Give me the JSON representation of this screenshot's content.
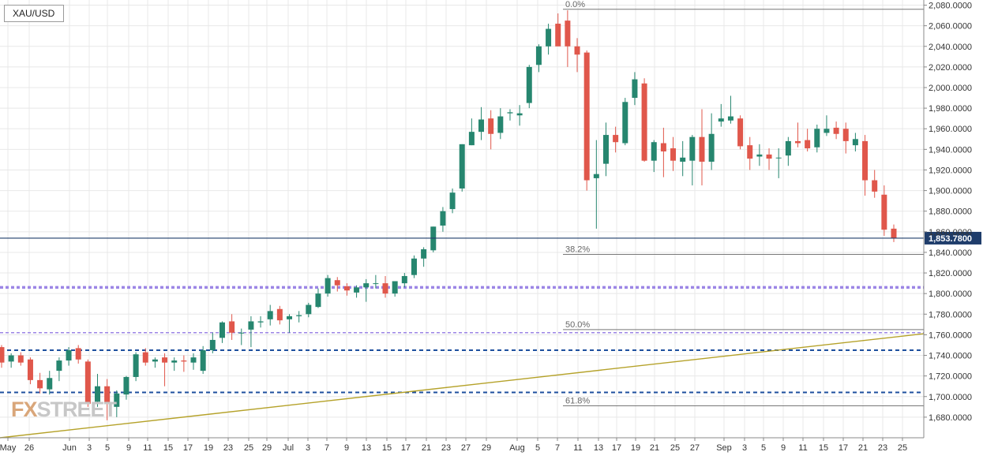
{
  "symbol": "XAU/USD",
  "logo": {
    "part1": "FX",
    "part2": "STREET"
  },
  "current_price": {
    "label": "1,853.7800"
  },
  "colors": {
    "bull": "#26866f",
    "bear": "#e0574b",
    "trendline": "#b5a22a",
    "support_blue": "#1d4f9e",
    "purple_zone": "#9c86e6",
    "price_tag": "#1f3d6b",
    "grid": "#e8e8e8"
  },
  "chart_data": {
    "type": "candlestick",
    "title": "",
    "xlabel": "",
    "ylabel": "",
    "ylim": [
      1660,
      2085
    ],
    "grid": true,
    "y_tick_labels": [
      "1,680.0000",
      "1,700.0000",
      "1,720.0000",
      "1,740.0000",
      "1,760.0000",
      "1,780.0000",
      "1,800.0000",
      "1,820.0000",
      "1,840.0000",
      "1,860.0000",
      "1,880.0000",
      "1,900.0000",
      "1,920.0000",
      "1,940.0000",
      "1,960.0000",
      "1,980.0000",
      "2,000.0000",
      "2,020.0000",
      "2,040.0000",
      "2,060.0000",
      "2,080.0000"
    ],
    "x_tick_labels": [
      "May",
      "26",
      "Jun",
      "3",
      "5",
      "9",
      "11",
      "15",
      "17",
      "19",
      "23",
      "25",
      "29",
      "Jul",
      "3",
      "7",
      "9",
      "13",
      "15",
      "17",
      "21",
      "23",
      "27",
      "29",
      "Aug",
      "5",
      "7",
      "11",
      "13",
      "17",
      "19",
      "21",
      "25",
      "27",
      "Sep",
      "3",
      "5",
      "9",
      "11",
      "15",
      "17",
      "21",
      "23",
      "25"
    ],
    "candles": [
      {
        "o": 1748,
        "h": 1750,
        "l": 1728,
        "c": 1733
      },
      {
        "o": 1734,
        "h": 1742,
        "l": 1728,
        "c": 1740
      },
      {
        "o": 1740,
        "h": 1743,
        "l": 1730,
        "c": 1733
      },
      {
        "o": 1736,
        "h": 1738,
        "l": 1712,
        "c": 1716
      },
      {
        "o": 1716,
        "h": 1723,
        "l": 1703,
        "c": 1708
      },
      {
        "o": 1707,
        "h": 1725,
        "l": 1702,
        "c": 1718
      },
      {
        "o": 1725,
        "h": 1738,
        "l": 1715,
        "c": 1735
      },
      {
        "o": 1735,
        "h": 1748,
        "l": 1730,
        "c": 1745
      },
      {
        "o": 1747,
        "h": 1750,
        "l": 1732,
        "c": 1736
      },
      {
        "o": 1734,
        "h": 1736,
        "l": 1690,
        "c": 1693
      },
      {
        "o": 1695,
        "h": 1722,
        "l": 1690,
        "c": 1710
      },
      {
        "o": 1710,
        "h": 1717,
        "l": 1677,
        "c": 1693
      },
      {
        "o": 1690,
        "h": 1706,
        "l": 1680,
        "c": 1703
      },
      {
        "o": 1702,
        "h": 1720,
        "l": 1697,
        "c": 1719
      },
      {
        "o": 1719,
        "h": 1743,
        "l": 1715,
        "c": 1741
      },
      {
        "o": 1743,
        "h": 1747,
        "l": 1730,
        "c": 1733
      },
      {
        "o": 1734,
        "h": 1738,
        "l": 1728,
        "c": 1736
      },
      {
        "o": 1738,
        "h": 1742,
        "l": 1710,
        "c": 1733
      },
      {
        "o": 1733,
        "h": 1738,
        "l": 1725,
        "c": 1735
      },
      {
        "o": 1735,
        "h": 1740,
        "l": 1724,
        "c": 1734
      },
      {
        "o": 1733,
        "h": 1742,
        "l": 1726,
        "c": 1738
      },
      {
        "o": 1725,
        "h": 1749,
        "l": 1722,
        "c": 1745
      },
      {
        "o": 1745,
        "h": 1762,
        "l": 1742,
        "c": 1755
      },
      {
        "o": 1757,
        "h": 1773,
        "l": 1752,
        "c": 1772
      },
      {
        "o": 1773,
        "h": 1780,
        "l": 1755,
        "c": 1762
      },
      {
        "o": 1762,
        "h": 1766,
        "l": 1750,
        "c": 1762
      },
      {
        "o": 1765,
        "h": 1778,
        "l": 1748,
        "c": 1773
      },
      {
        "o": 1772,
        "h": 1778,
        "l": 1767,
        "c": 1773
      },
      {
        "o": 1775,
        "h": 1789,
        "l": 1769,
        "c": 1783
      },
      {
        "o": 1785,
        "h": 1788,
        "l": 1770,
        "c": 1774
      },
      {
        "o": 1775,
        "h": 1780,
        "l": 1762,
        "c": 1778
      },
      {
        "o": 1778,
        "h": 1783,
        "l": 1772,
        "c": 1779
      },
      {
        "o": 1780,
        "h": 1791,
        "l": 1777,
        "c": 1789
      },
      {
        "o": 1787,
        "h": 1805,
        "l": 1786,
        "c": 1800
      },
      {
        "o": 1800,
        "h": 1818,
        "l": 1797,
        "c": 1815
      },
      {
        "o": 1813,
        "h": 1816,
        "l": 1802,
        "c": 1808
      },
      {
        "o": 1807,
        "h": 1810,
        "l": 1798,
        "c": 1803
      },
      {
        "o": 1801,
        "h": 1808,
        "l": 1796,
        "c": 1806
      },
      {
        "o": 1806,
        "h": 1814,
        "l": 1792,
        "c": 1810
      },
      {
        "o": 1810,
        "h": 1818,
        "l": 1805,
        "c": 1810
      },
      {
        "o": 1810,
        "h": 1817,
        "l": 1796,
        "c": 1800
      },
      {
        "o": 1800,
        "h": 1812,
        "l": 1797,
        "c": 1812
      },
      {
        "o": 1810,
        "h": 1820,
        "l": 1806,
        "c": 1817
      },
      {
        "o": 1818,
        "h": 1837,
        "l": 1815,
        "c": 1834
      },
      {
        "o": 1834,
        "h": 1845,
        "l": 1826,
        "c": 1843
      },
      {
        "o": 1842,
        "h": 1865,
        "l": 1840,
        "c": 1865
      },
      {
        "o": 1866,
        "h": 1884,
        "l": 1860,
        "c": 1880
      },
      {
        "o": 1882,
        "h": 1902,
        "l": 1878,
        "c": 1898
      },
      {
        "o": 1902,
        "h": 1945,
        "l": 1899,
        "c": 1945
      },
      {
        "o": 1944,
        "h": 1970,
        "l": 1944,
        "c": 1957
      },
      {
        "o": 1957,
        "h": 1981,
        "l": 1949,
        "c": 1969
      },
      {
        "o": 1970,
        "h": 1978,
        "l": 1940,
        "c": 1955
      },
      {
        "o": 1956,
        "h": 1980,
        "l": 1950,
        "c": 1972
      },
      {
        "o": 1975,
        "h": 1979,
        "l": 1968,
        "c": 1976
      },
      {
        "o": 1973,
        "h": 1983,
        "l": 1963,
        "c": 1975
      },
      {
        "o": 1985,
        "h": 2022,
        "l": 1980,
        "c": 2020
      },
      {
        "o": 2022,
        "h": 2042,
        "l": 2015,
        "c": 2040
      },
      {
        "o": 2040,
        "h": 2062,
        "l": 2032,
        "c": 2057
      },
      {
        "o": 2062,
        "h": 2072,
        "l": 2043,
        "c": 2040
      },
      {
        "o": 2065,
        "h": 2075,
        "l": 2020,
        "c": 2040
      },
      {
        "o": 2040,
        "h": 2048,
        "l": 2015,
        "c": 2032
      },
      {
        "o": 2034,
        "h": 2036,
        "l": 1900,
        "c": 1910
      },
      {
        "o": 1912,
        "h": 1949,
        "l": 1863,
        "c": 1916
      },
      {
        "o": 1926,
        "h": 1966,
        "l": 1914,
        "c": 1954
      },
      {
        "o": 1954,
        "h": 1962,
        "l": 1937,
        "c": 1947
      },
      {
        "o": 1946,
        "h": 1990,
        "l": 1944,
        "c": 1986
      },
      {
        "o": 1990,
        "h": 2015,
        "l": 1983,
        "c": 2008
      },
      {
        "o": 2004,
        "h": 2009,
        "l": 1928,
        "c": 1929
      },
      {
        "o": 1929,
        "h": 1949,
        "l": 1918,
        "c": 1947
      },
      {
        "o": 1946,
        "h": 1961,
        "l": 1913,
        "c": 1938
      },
      {
        "o": 1941,
        "h": 1952,
        "l": 1919,
        "c": 1929
      },
      {
        "o": 1928,
        "h": 1948,
        "l": 1914,
        "c": 1932
      },
      {
        "o": 1929,
        "h": 1954,
        "l": 1905,
        "c": 1952
      },
      {
        "o": 1952,
        "h": 1979,
        "l": 1905,
        "c": 1928
      },
      {
        "o": 1928,
        "h": 1975,
        "l": 1920,
        "c": 1955
      },
      {
        "o": 1967,
        "h": 1984,
        "l": 1962,
        "c": 1970
      },
      {
        "o": 1968,
        "h": 1992,
        "l": 1965,
        "c": 1972
      },
      {
        "o": 1970,
        "h": 1973,
        "l": 1940,
        "c": 1943
      },
      {
        "o": 1944,
        "h": 1952,
        "l": 1920,
        "c": 1931
      },
      {
        "o": 1933,
        "h": 1945,
        "l": 1924,
        "c": 1935
      },
      {
        "o": 1935,
        "h": 1941,
        "l": 1920,
        "c": 1931
      },
      {
        "o": 1932,
        "h": 1941,
        "l": 1912,
        "c": 1932
      },
      {
        "o": 1934,
        "h": 1952,
        "l": 1924,
        "c": 1948
      },
      {
        "o": 1948,
        "h": 1966,
        "l": 1942,
        "c": 1946
      },
      {
        "o": 1949,
        "h": 1960,
        "l": 1938,
        "c": 1941
      },
      {
        "o": 1942,
        "h": 1964,
        "l": 1937,
        "c": 1960
      },
      {
        "o": 1956,
        "h": 1973,
        "l": 1953,
        "c": 1960
      },
      {
        "o": 1961,
        "h": 1967,
        "l": 1950,
        "c": 1955
      },
      {
        "o": 1960,
        "h": 1966,
        "l": 1936,
        "c": 1948
      },
      {
        "o": 1944,
        "h": 1956,
        "l": 1938,
        "c": 1950
      },
      {
        "o": 1948,
        "h": 1954,
        "l": 1895,
        "c": 1910
      },
      {
        "o": 1910,
        "h": 1920,
        "l": 1893,
        "c": 1899
      },
      {
        "o": 1896,
        "h": 1905,
        "l": 1856,
        "c": 1862
      },
      {
        "o": 1863,
        "h": 1867,
        "l": 1850,
        "c": 1853.78
      }
    ],
    "levels": {
      "support_lines": [
        1745,
        1704
      ],
      "purple_zones": [
        1806,
        1762
      ],
      "current_price": 1853.78
    },
    "fibonacci": [
      {
        "label": "0.0%",
        "value": 2076
      },
      {
        "label": "38.2%",
        "value": 1838
      },
      {
        "label": "50.0%",
        "value": 1765
      },
      {
        "label": "61.8%",
        "value": 1691
      }
    ],
    "trendline": {
      "start_value": 1660,
      "end_value": 1761
    }
  }
}
